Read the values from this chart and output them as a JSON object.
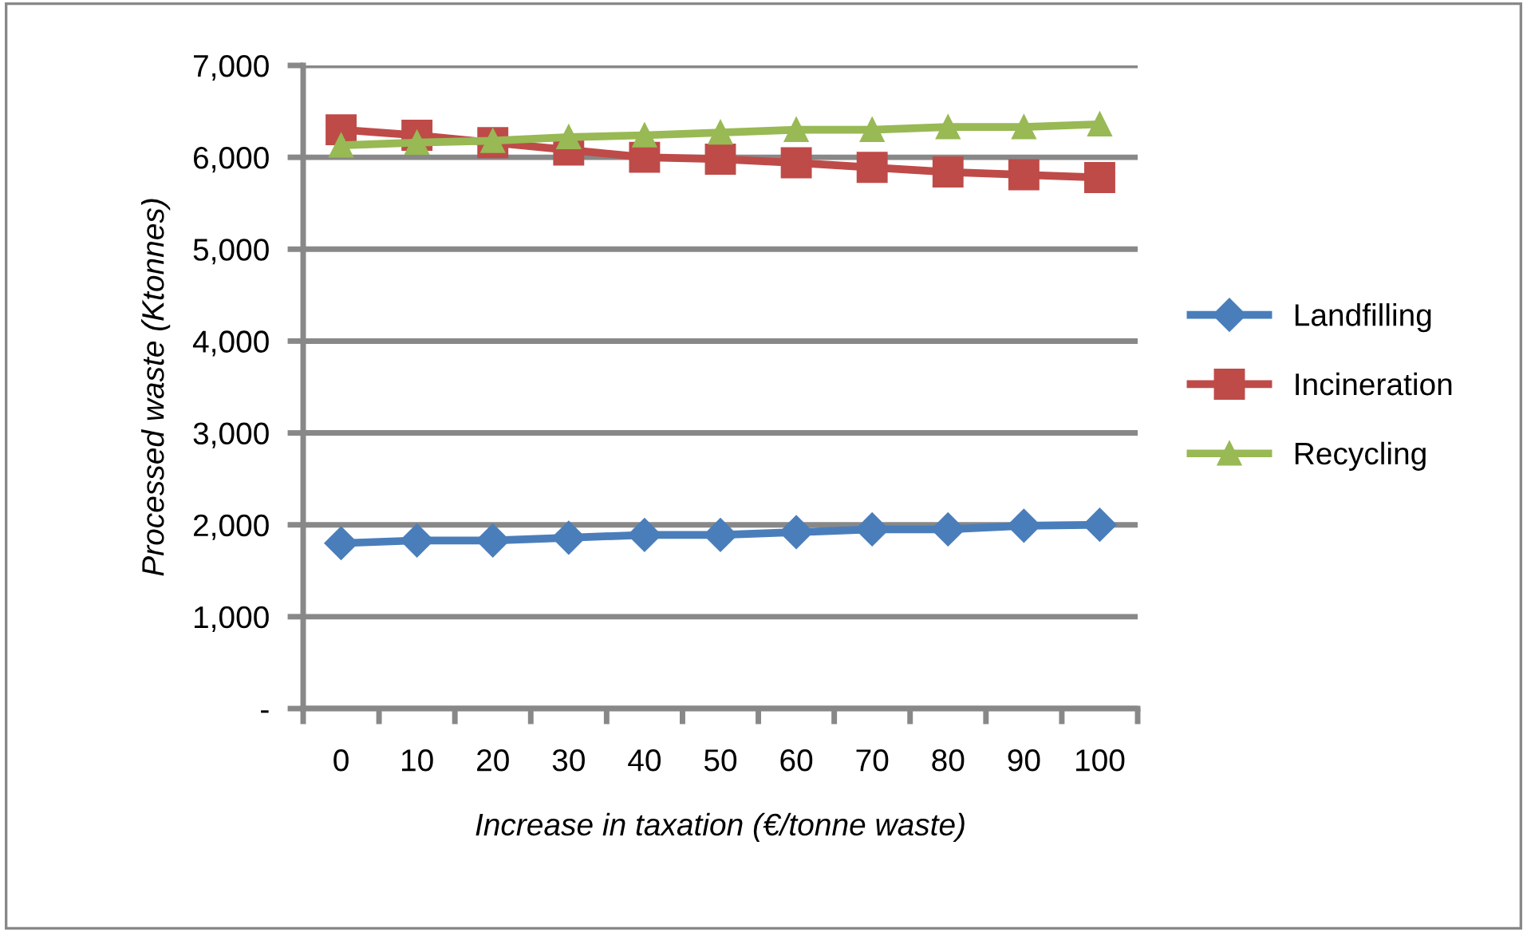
{
  "chart_data": {
    "type": "line",
    "xlabel": "Increase in taxation (€/tonne waste)",
    "ylabel": "Processed waste (Ktonnes)",
    "categories": [
      "0",
      "10",
      "20",
      "30",
      "40",
      "50",
      "60",
      "70",
      "80",
      "90",
      "100"
    ],
    "series": [
      {
        "name": "Landfilling",
        "color": "#4a7ebb",
        "marker": "diamond",
        "values": [
          1800,
          1830,
          1830,
          1860,
          1890,
          1890,
          1920,
          1950,
          1950,
          1990,
          2000
        ]
      },
      {
        "name": "Incineration",
        "color": "#be4b48",
        "marker": "square",
        "values": [
          6300,
          6240,
          6160,
          6080,
          6000,
          5980,
          5940,
          5890,
          5840,
          5810,
          5780
        ]
      },
      {
        "name": "Recycling",
        "color": "#98b954",
        "marker": "triangle",
        "values": [
          6130,
          6160,
          6180,
          6220,
          6240,
          6270,
          6300,
          6300,
          6330,
          6330,
          6360
        ]
      }
    ],
    "ylim": [
      0,
      7000
    ],
    "yticks": [
      {
        "value": 0,
        "label": "-"
      },
      {
        "value": 1000,
        "label": "1,000"
      },
      {
        "value": 2000,
        "label": "2,000"
      },
      {
        "value": 3000,
        "label": "3,000"
      },
      {
        "value": 4000,
        "label": "4,000"
      },
      {
        "value": 5000,
        "label": "5,000"
      },
      {
        "value": 6000,
        "label": "6,000"
      },
      {
        "value": 7000,
        "label": "7,000"
      }
    ],
    "grid": "y",
    "legend": "right",
    "line_style": "solid"
  }
}
